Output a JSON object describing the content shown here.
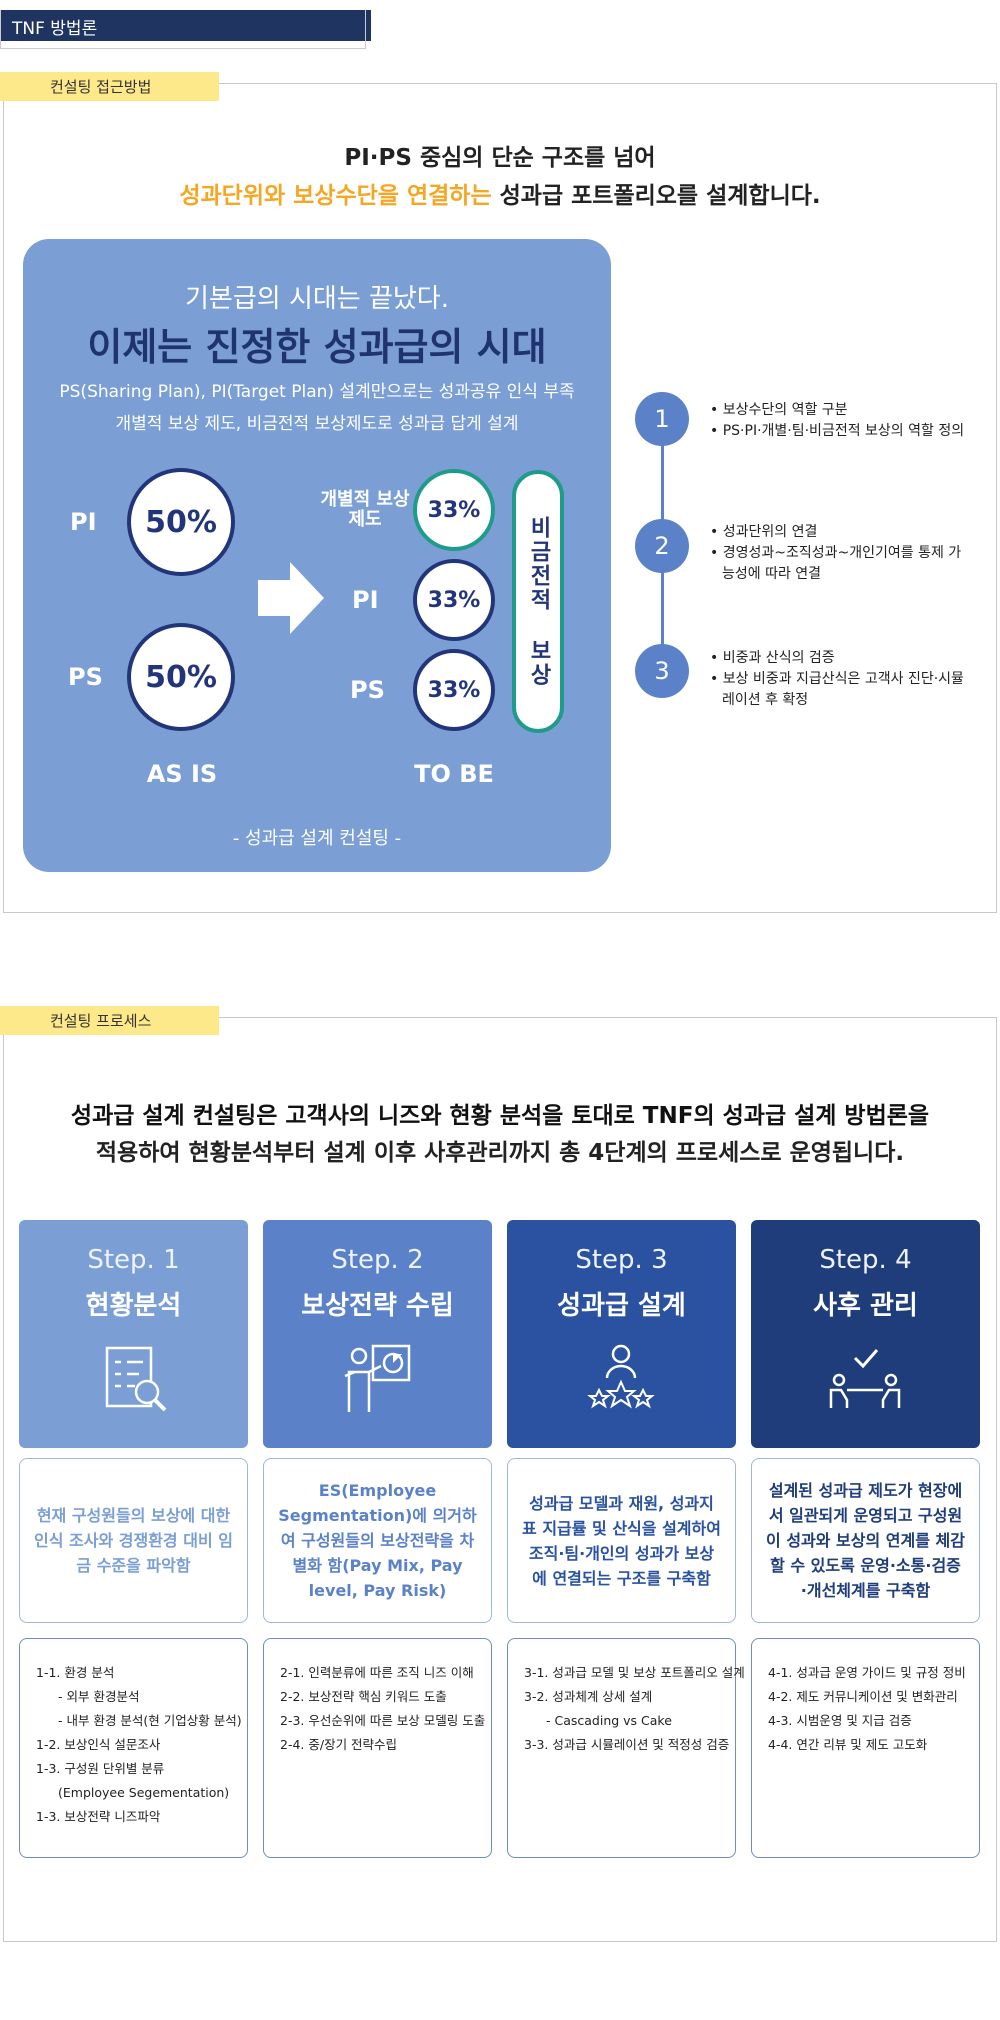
{
  "header": {
    "title": "TNF 방법론"
  },
  "approach": {
    "tag": "컨설팅 접근방법",
    "heading": {
      "line1": "PI·PS 중심의 단순 구조를 넘어",
      "highlight": "성과단위와 보상수단을 연결하는",
      "rest": "성과급 포트폴리오를 설계합니다."
    },
    "box": {
      "kicker": "기본급의 시대는 끝났다.",
      "title": "이제는 진정한 성과급의 시대",
      "text1": "PS(Sharing Plan), PI(Target Plan) 설계만으로는 성과공유 인식 부족",
      "text2": "개별적 보상 제도, 비금전적 보상제도로 성과급 답게 설계",
      "as_is": {
        "label": "AS IS",
        "items": [
          {
            "name": "PI",
            "share": "50%"
          },
          {
            "name": "PS",
            "share": "50%"
          }
        ]
      },
      "to_be": {
        "label": "TO BE",
        "items": [
          {
            "name": "개별적 보상제도",
            "share": "33%"
          },
          {
            "name": "PI",
            "share": "33%"
          },
          {
            "name": "PS",
            "share": "33%"
          }
        ],
        "pill": "비금전적 보상"
      },
      "caption": "- 성과급 설계 컨설팅 -"
    },
    "steps": [
      {
        "number": "1",
        "bullets": [
          "보상수단의 역할 구분",
          "PS·PI·개별·팀·비금전적 보상의 역할 정의"
        ]
      },
      {
        "number": "2",
        "bullets": [
          "성과단위의 연결",
          "경영성과~조직성과~개인기여를 통제 가능성에 따라 연결"
        ]
      },
      {
        "number": "3",
        "bullets": [
          "비중과 산식의 검증",
          "보상 비중과 지급산식은 고객사 진단·시뮬레이션 후 확정"
        ]
      }
    ]
  },
  "process": {
    "tag": "컨설팅 프로세스",
    "heading": [
      "성과급 설계 컨설팅은 고객사의 니즈와 현황 분석을 토대로 TNF의 성과급 설계 방법론을",
      "적용하여 현황분석부터 설계 이후 사후관리까지 총 4단계의 프로세스로 운영됩니다."
    ],
    "steps": [
      {
        "label": "Step. 1",
        "title": "현황분석",
        "description": "현재 구성원들의 보상에 대한 인식 조사와 경쟁환경 대비 임금 수준을 파악함",
        "details": [
          "1-1. 환경 분석",
          "- 외부 환경분석",
          "- 내부 환경 분석(현 기업상황 분석)",
          "1-2. 보상인식 설문조사",
          "1-3. 구성원 단위별 분류",
          "(Employee Segementation)",
          "1-3. 보상전략 니즈파악"
        ]
      },
      {
        "label": "Step. 2",
        "title": "보상전략 수립",
        "description": "ES(Employee Segmentation)에 의거하여 구성원들의 보상전략을 차별화 함(Pay Mix, Pay level, Pay Risk)",
        "details": [
          "2-1. 인력분류에 따른 조직 니즈 이해",
          "2-2. 보상전략 핵심 키워드 도출",
          "2-3. 우선순위에 따른 보상 모델링 도출",
          "2-4. 중/장기 전략수립"
        ]
      },
      {
        "label": "Step. 3",
        "title": "성과급 설계",
        "description": "성과급 모델과 재원, 성과지표 지급률 및 산식을 설계하여 조직·팀·개인의 성과가 보상에 연결되는 구조를 구축함",
        "details": [
          "3-1. 성과급 모델 및 보상 포트폴리오 설계",
          "3-2. 성과체계 상세 설계",
          "- Cascading vs Cake",
          "3-3. 성과급 시뮬레이션 및 적정성 검증"
        ]
      },
      {
        "label": "Step. 4",
        "title": "사후 관리",
        "description": "설계된 성과급 제도가 현장에서 일관되게 운영되고 구성원이 성과와 보상의 연계를 체감할 수 있도록 운영·소통·검증 ·개선체계를 구축함",
        "details": [
          "4-1. 성과급 운영 가이드 및 규정 정비",
          "4-2. 제도 커뮤니케이션 및 변화관리",
          "4-3. 시범운영 및 지급 검증",
          "4-4. 연간 리뷰 및 제도 고도화"
        ]
      }
    ]
  }
}
